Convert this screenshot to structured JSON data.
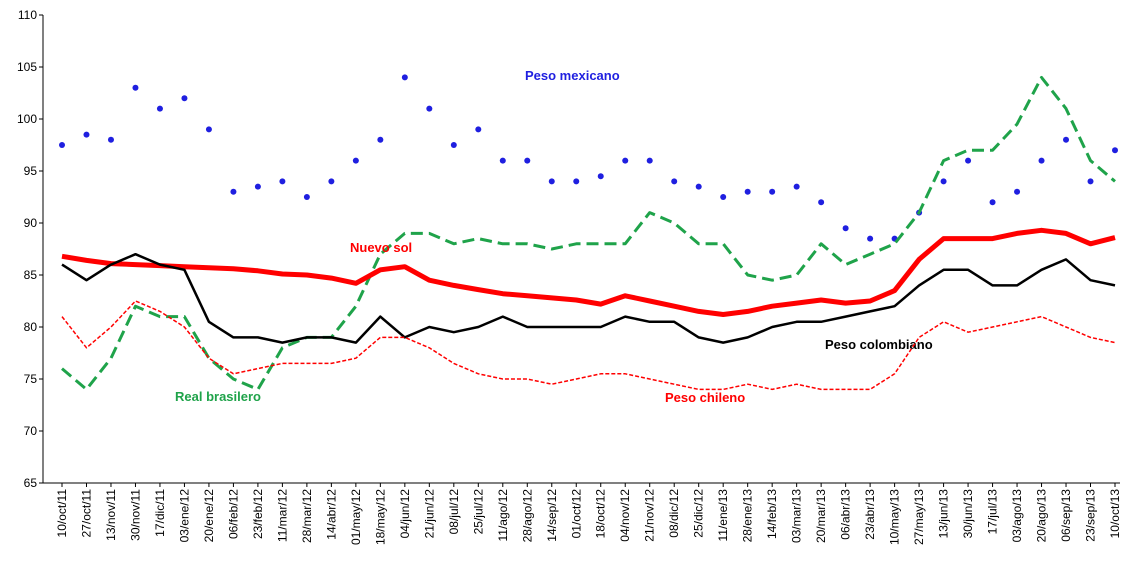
{
  "chart_data": {
    "type": "line",
    "categories": [
      "10/oct/11",
      "27/oct/11",
      "13/nov/11",
      "30/nov/11",
      "17/dic/11",
      "03/ene/12",
      "20/ene/12",
      "06/feb/12",
      "23/feb/12",
      "11/mar/12",
      "28/mar/12",
      "14/abr/12",
      "01/may/12",
      "18/may/12",
      "04/jun/12",
      "21/jun/12",
      "08/jul/12",
      "25/jul/12",
      "11/ago/12",
      "28/ago/12",
      "14/sep/12",
      "01/oct/12",
      "18/oct/12",
      "04/nov/12",
      "21/nov/12",
      "08/dic/12",
      "25/dic/12",
      "11/ene/13",
      "28/ene/13",
      "14/feb/13",
      "03/mar/13",
      "20/mar/13",
      "06/abr/13",
      "23/abr/13",
      "10/may/13",
      "27/may/13",
      "13/jun/13",
      "30/jun/13",
      "17/jul/13",
      "03/ago/13",
      "20/ago/13",
      "06/sep/13",
      "23/sep/13",
      "10/oct/13"
    ],
    "series": [
      {
        "name": "Peso mexicano",
        "color": "#1f1fe0",
        "style": "dots",
        "values": [
          97.5,
          98.5,
          98,
          103,
          101,
          102,
          99,
          93,
          93.5,
          94,
          92.5,
          94,
          96,
          98,
          104,
          101,
          97.5,
          99,
          96,
          96,
          94,
          94,
          94.5,
          96,
          96,
          94,
          93.5,
          92.5,
          93,
          93,
          93.5,
          92,
          89.5,
          88.5,
          88.5,
          91,
          94,
          96,
          92,
          93,
          96,
          98,
          94,
          97
        ]
      },
      {
        "name": "Real brasilero",
        "color": "#1fa34a",
        "style": "dashed",
        "values": [
          76,
          74,
          77,
          82,
          81,
          81,
          77,
          75,
          74,
          78,
          79,
          79,
          82,
          87,
          89,
          89,
          88,
          88.5,
          88,
          88,
          87.5,
          88,
          88,
          88,
          91,
          90,
          88,
          88,
          85,
          84.5,
          85,
          88,
          86,
          87,
          88,
          91,
          96,
          97,
          97,
          99.5,
          104,
          101,
          96,
          94
        ]
      },
      {
        "name": "Nuevo sol",
        "color": "#ff0000",
        "style": "thick",
        "values": [
          86.8,
          86.4,
          86.1,
          86,
          85.9,
          85.8,
          85.7,
          85.6,
          85.4,
          85.1,
          85,
          84.7,
          84.2,
          85.5,
          85.8,
          84.5,
          84,
          83.6,
          83.2,
          83,
          82.8,
          82.6,
          82.2,
          83,
          82.5,
          82,
          81.5,
          81.2,
          81.5,
          82,
          82.3,
          82.6,
          82.3,
          82.5,
          83.5,
          86.5,
          88.5,
          88.5,
          88.5,
          89,
          89.3,
          89,
          88,
          88.6
        ]
      },
      {
        "name": "Peso colombiano",
        "color": "#000000",
        "style": "solid",
        "values": [
          86,
          84.5,
          86,
          87,
          86,
          85.5,
          80.5,
          79,
          79,
          78.5,
          79,
          79,
          78.5,
          81,
          79,
          80,
          79.5,
          80,
          81,
          80,
          80,
          80,
          80,
          81,
          80.5,
          80.5,
          79,
          78.5,
          79,
          80,
          80.5,
          80.5,
          81,
          81.5,
          82,
          84,
          85.5,
          85.5,
          84,
          84,
          85.5,
          86.5,
          84.5,
          84
        ]
      },
      {
        "name": "Peso chileno",
        "color": "#ff0000",
        "style": "dotted",
        "values": [
          81,
          78,
          80,
          82.5,
          81.5,
          80,
          77,
          75.5,
          76,
          76.5,
          76.5,
          76.5,
          77,
          79,
          79,
          78,
          76.5,
          75.5,
          75,
          75,
          74.5,
          75,
          75.5,
          75.5,
          75,
          74.5,
          74,
          74,
          74.5,
          74,
          74.5,
          74,
          74,
          74,
          75.5,
          79,
          80.5,
          79.5,
          80,
          80.5,
          81,
          80,
          79,
          78.5
        ]
      }
    ],
    "ylim": [
      65,
      110
    ],
    "yticks": [
      65,
      70,
      75,
      80,
      85,
      90,
      95,
      100,
      105,
      110
    ]
  }
}
